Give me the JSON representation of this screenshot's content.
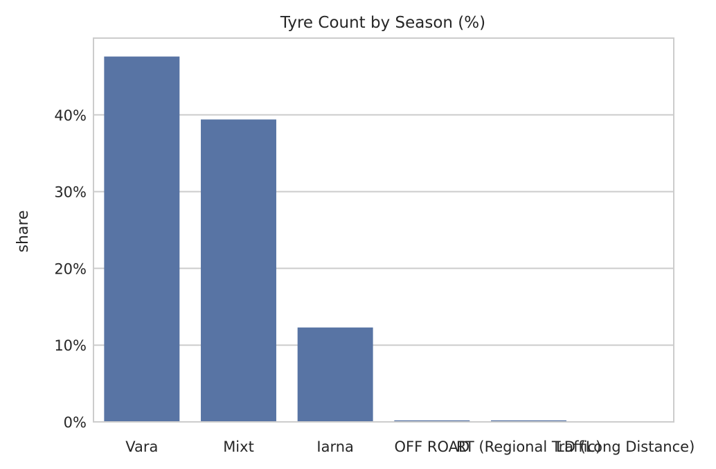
{
  "chart_data": {
    "type": "bar",
    "title": "Tyre Count by Season (%)",
    "xlabel": "",
    "ylabel": "share",
    "categories": [
      "Vara",
      "Mixt",
      "Iarna",
      "OFF ROAD",
      "RT (Regional Traffic)",
      "LD (Long Distance)"
    ],
    "values": [
      47.6,
      39.4,
      12.3,
      0.2,
      0.2,
      0.05
    ],
    "ylim": [
      0,
      50
    ],
    "yticks": [
      0,
      10,
      20,
      30,
      40
    ],
    "ytick_labels": [
      "0%",
      "10%",
      "20%",
      "30%",
      "40%"
    ],
    "grid": true,
    "legend": "none",
    "colors": {
      "bar": "#5874a4",
      "grid": "#cccccc",
      "spine": "#cccccc",
      "text": "#262626",
      "background": "#ffffff"
    }
  }
}
